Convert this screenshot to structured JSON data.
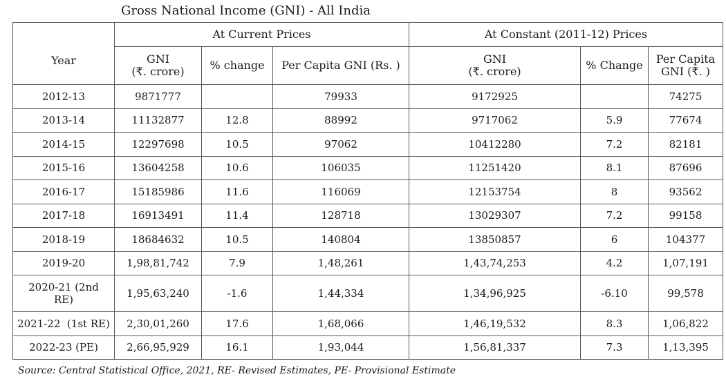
{
  "title": "Gross National Income (GNI) - All India",
  "groups": {
    "year": "Year",
    "current": "At Current Prices",
    "constant": "At Constant (2011-12) Prices"
  },
  "subheaders": {
    "current_gni_line1": "GNI",
    "current_gni_line2": "(₹. crore)",
    "current_change": "% change",
    "current_per_capita": "Per Capita GNI (Rs. )",
    "constant_gni_line1": "GNI",
    "constant_gni_line2": "(₹. crore)",
    "constant_change": "% Change",
    "constant_per_capita_line1": "Per Capita",
    "constant_per_capita_line2": "GNI (₹. )"
  },
  "rows": [
    [
      "2012-13",
      "9871777",
      "",
      "79933",
      "9172925",
      "",
      "74275"
    ],
    [
      "2013-14",
      "11132877",
      "12.8",
      "88992",
      "9717062",
      "5.9",
      "77674"
    ],
    [
      "2014-15",
      "12297698",
      "10.5",
      "97062",
      "10412280",
      "7.2",
      "82181"
    ],
    [
      "2015-16",
      "13604258",
      "10.6",
      "106035",
      "11251420",
      "8.1",
      "87696"
    ],
    [
      "2016-17",
      "15185986",
      "11.6",
      "116069",
      "12153754",
      "8",
      "93562"
    ],
    [
      "2017-18",
      "16913491",
      "11.4",
      "128718",
      "13029307",
      "7.2",
      "99158"
    ],
    [
      "2018-19",
      "18684632",
      "10.5",
      "140804",
      "13850857",
      "6",
      "104377"
    ],
    [
      "2019-20",
      "1,98,81,742",
      "7.9",
      "1,48,261",
      "1,43,74,253",
      "4.2",
      "1,07,191"
    ],
    [
      "2020-21 (2nd RE)",
      "1,95,63,240",
      "-1.6",
      "1,44,334",
      "1,34,96,925",
      "-6.10",
      "99,578"
    ],
    [
      "2021-22  (1st RE)",
      "2,30,01,260",
      "17.6",
      "1,68,066",
      "1,46,19,532",
      "8.3",
      "1,06,822"
    ],
    [
      "2022-23 (PE)",
      "2,66,95,929",
      "16.1",
      "1,93,044",
      "1,56,81,337",
      "7.3",
      "1,13,395"
    ]
  ],
  "source": "Source: Central Statistical Office, 2021, RE- Revised Estimates, PE- Provisional Estimate"
}
